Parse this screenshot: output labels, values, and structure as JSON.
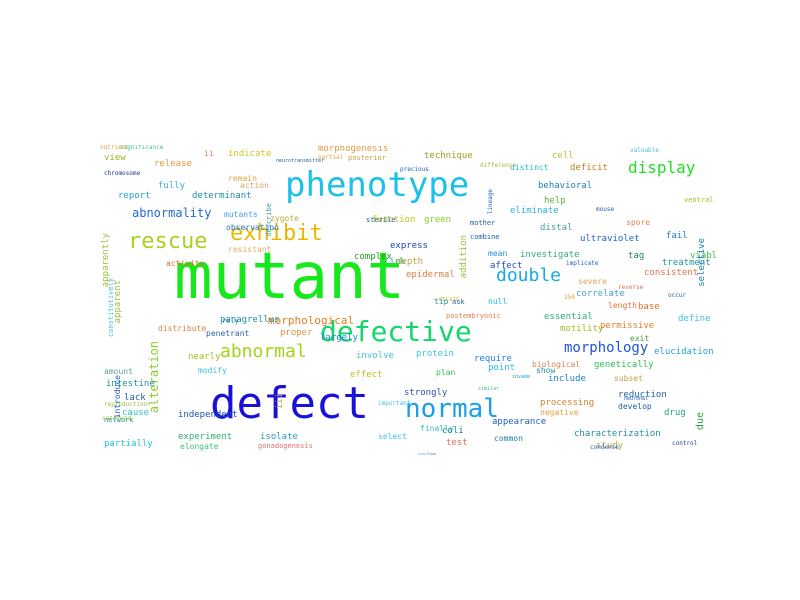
{
  "words": [
    {
      "text": "mutant",
      "color": "#17e81b"
    },
    {
      "text": "defect",
      "color": "#1a10dc"
    },
    {
      "text": "phenotype",
      "color": "#1ec0e8"
    },
    {
      "text": "defective",
      "color": "#14d66a"
    },
    {
      "text": "normal",
      "color": "#1aa0e6"
    },
    {
      "text": "exhibit",
      "color": "#e8b800"
    },
    {
      "text": "rescue",
      "color": "#a8d220"
    },
    {
      "text": "abnormal",
      "color": "#a0d418"
    },
    {
      "text": "double",
      "color": "#1aa8e8"
    },
    {
      "text": "display",
      "color": "#22dd22"
    },
    {
      "text": "morphology",
      "color": "#1f55d8"
    },
    {
      "text": "abnormality",
      "color": "#2268d8"
    },
    {
      "text": "morphological",
      "color": "#e87b20"
    },
    {
      "text": "alteration",
      "color": "#88d030"
    },
    {
      "text": "release",
      "color": "#e89a40"
    },
    {
      "text": "indicate",
      "color": "#c8c820"
    },
    {
      "text": "morphogenesis",
      "color": "#e89a40"
    },
    {
      "text": "technique",
      "color": "#9c9c20"
    },
    {
      "text": "cell",
      "color": "#c0c030"
    },
    {
      "text": "view",
      "color": "#9cb820"
    },
    {
      "text": "fully",
      "color": "#40b0e8"
    },
    {
      "text": "report",
      "color": "#20a0c8"
    },
    {
      "text": "determinant",
      "color": "#2090a8"
    },
    {
      "text": "remain",
      "color": "#e0a040"
    },
    {
      "text": "action",
      "color": "#e0a060"
    },
    {
      "text": "deficit",
      "color": "#c08020"
    },
    {
      "text": "behavioral",
      "color": "#2080c0"
    },
    {
      "text": "help",
      "color": "#60b040"
    },
    {
      "text": "distinct",
      "color": "#20c0c0"
    },
    {
      "text": "eliminate",
      "color": "#30b0e0"
    },
    {
      "text": "function",
      "color": "#c0c020"
    },
    {
      "text": "green",
      "color": "#80d020"
    },
    {
      "text": "distal",
      "color": "#40a0a0"
    },
    {
      "text": "fail",
      "color": "#2080e0"
    },
    {
      "text": "ultraviolet",
      "color": "#2060d0"
    },
    {
      "text": "viable",
      "color": "#40c040"
    },
    {
      "text": "resistant",
      "color": "#e0b060"
    },
    {
      "text": "express",
      "color": "#2040c0"
    },
    {
      "text": "complex",
      "color": "#20a020"
    },
    {
      "text": "link",
      "color": "#30c0a0"
    },
    {
      "text": "investigate",
      "color": "#30b080"
    },
    {
      "text": "tag",
      "color": "#208060"
    },
    {
      "text": "treatment",
      "color": "#2090a0"
    },
    {
      "text": "activity",
      "color": "#e07020"
    },
    {
      "text": "mean",
      "color": "#2090e0"
    },
    {
      "text": "affect",
      "color": "#2050c0"
    },
    {
      "text": "consistent",
      "color": "#e07050"
    },
    {
      "text": "severe",
      "color": "#e0a060"
    },
    {
      "text": "correlate",
      "color": "#40a0e0"
    },
    {
      "text": "length",
      "color": "#e07030"
    },
    {
      "text": "base",
      "color": "#e07030"
    },
    {
      "text": "define",
      "color": "#40c0e0"
    },
    {
      "text": "null",
      "color": "#20c0e0"
    },
    {
      "text": "essential",
      "color": "#30b070"
    },
    {
      "text": "motility",
      "color": "#a0c020"
    },
    {
      "text": "permissive",
      "color": "#e08030"
    },
    {
      "text": "exit",
      "color": "#40a040"
    },
    {
      "text": "panagrellus",
      "color": "#2090a0"
    },
    {
      "text": "proper",
      "color": "#e09040"
    },
    {
      "text": "largely",
      "color": "#2080e0"
    },
    {
      "text": "penetrant",
      "color": "#3060b0"
    },
    {
      "text": "rely",
      "color": "#2080c0"
    },
    {
      "text": "distribute",
      "color": "#e08040"
    },
    {
      "text": "nearly",
      "color": "#a0c020"
    },
    {
      "text": "involve",
      "color": "#40c0e0"
    },
    {
      "text": "protein",
      "color": "#40c0e0"
    },
    {
      "text": "require",
      "color": "#2080e0"
    },
    {
      "text": "genetically",
      "color": "#30c050"
    },
    {
      "text": "elucidation",
      "color": "#20a0e0"
    },
    {
      "text": "include",
      "color": "#2080c0"
    },
    {
      "text": "subset",
      "color": "#c0a040"
    },
    {
      "text": "modify",
      "color": "#40c0e0"
    },
    {
      "text": "effect",
      "color": "#c0c020"
    },
    {
      "text": "plan",
      "color": "#30c050"
    },
    {
      "text": "point",
      "color": "#20c0e0"
    },
    {
      "text": "intestine",
      "color": "#2090a0"
    },
    {
      "text": "amount",
      "color": "#60a0a0"
    },
    {
      "text": "lack",
      "color": "#2060a0"
    },
    {
      "text": "strongly",
      "color": "#3050b0"
    },
    {
      "text": "reduction",
      "color": "#2060c0"
    },
    {
      "text": "cause",
      "color": "#30c0c0"
    },
    {
      "text": "independent",
      "color": "#2050c0"
    },
    {
      "text": "processing",
      "color": "#e08030"
    },
    {
      "text": "develop",
      "color": "#2060a0"
    },
    {
      "text": "drug",
      "color": "#20a080"
    },
    {
      "text": "network",
      "color": "#2090a0"
    },
    {
      "text": "partially",
      "color": "#20c0e0"
    },
    {
      "text": "experiment",
      "color": "#30b070"
    },
    {
      "text": "isolate",
      "color": "#20a0c0"
    },
    {
      "text": "finally",
      "color": "#30c0c0"
    },
    {
      "text": "appearance",
      "color": "#2060c0"
    },
    {
      "text": "characterization",
      "color": "#2090a0"
    },
    {
      "text": "due",
      "color": "#30a040"
    },
    {
      "text": "select",
      "color": "#40c0e0"
    },
    {
      "text": "coli",
      "color": "#2080a0"
    },
    {
      "text": "common",
      "color": "#2080a0"
    },
    {
      "text": "study",
      "color": "#c0a040"
    },
    {
      "text": "test",
      "color": "#e07050"
    },
    {
      "text": "elongate",
      "color": "#40c080"
    },
    {
      "text": "gonadogenesis",
      "color": "#e07070"
    },
    {
      "text": "constitutively",
      "color": "#40c0e0"
    },
    {
      "text": "apparently",
      "color": "#a0c040"
    },
    {
      "text": "apparent",
      "color": "#a0c040"
    },
    {
      "text": "posterior",
      "color": "#c0a040"
    },
    {
      "text": "postembryonic",
      "color": "#e08050"
    },
    {
      "text": "zygote",
      "color": "#c0a040"
    },
    {
      "text": "describe",
      "color": "#40a0a0"
    },
    {
      "text": "mutants",
      "color": "#40a0e0"
    },
    {
      "text": "observation",
      "color": "#2070c0"
    },
    {
      "text": "addition",
      "color": "#a0c040"
    },
    {
      "text": "depth",
      "color": "#c0a040"
    },
    {
      "text": "ventral",
      "color": "#a0c020"
    },
    {
      "text": "selective",
      "color": "#2080c0"
    },
    {
      "text": "partial",
      "color": "#e0a040"
    },
    {
      "text": "precious",
      "color": "#2060c0"
    },
    {
      "text": "difference",
      "color": "#a0c040"
    },
    {
      "text": "lineage",
      "color": "#2060c0"
    },
    {
      "text": "valuable",
      "color": "#40c0e0"
    },
    {
      "text": "chromosome",
      "color": "#2030a0"
    },
    {
      "text": "neurotransmitter",
      "color": "#2060a0"
    },
    {
      "text": "significance",
      "color": "#40c0a0"
    },
    {
      "text": "sterile",
      "color": "#2060a0"
    },
    {
      "text": "epidermal",
      "color": "#e08040"
    },
    {
      "text": "strain",
      "color": "#c0c020"
    },
    {
      "text": "tip",
      "color": "#2090a0"
    },
    {
      "text": "ask",
      "color": "#2060c0"
    },
    {
      "text": "similar",
      "color": "#40c080"
    },
    {
      "text": "invade",
      "color": "#20a0c0"
    },
    {
      "text": "occur",
      "color": "#2060c0"
    },
    {
      "text": "biological",
      "color": "#e08050"
    },
    {
      "text": "show",
      "color": "#2090a0"
    },
    {
      "text": "negative",
      "color": "#e0a040"
    },
    {
      "text": "important",
      "color": "#40c0e0"
    },
    {
      "text": "condense",
      "color": "#2060c0"
    },
    {
      "text": "neuronal",
      "color": "#2060a0"
    },
    {
      "text": "control",
      "color": "#2040a0"
    },
    {
      "text": "reproduction",
      "color": "#a0c040"
    },
    {
      "text": "catalyze",
      "color": "#a0c040"
    },
    {
      "text": "system",
      "color": "#40a0e0"
    },
    {
      "text": "introduce",
      "color": "#2060c0"
    },
    {
      "text": "ii",
      "color": "#e08040"
    },
    {
      "text": "iii",
      "color": "#c0a040"
    },
    {
      "text": "250",
      "color": "#e0a040"
    },
    {
      "text": "mother",
      "color": "#2060a0"
    },
    {
      "text": "combine",
      "color": "#2060c0"
    },
    {
      "text": "implicate",
      "color": "#2060c0"
    },
    {
      "text": "mouse",
      "color": "#2060a0"
    },
    {
      "text": "spore",
      "color": "#e08050"
    },
    {
      "text": "reverse",
      "color": "#e07050"
    },
    {
      "text": "nutrient",
      "color": "#e0a040"
    }
  ]
}
